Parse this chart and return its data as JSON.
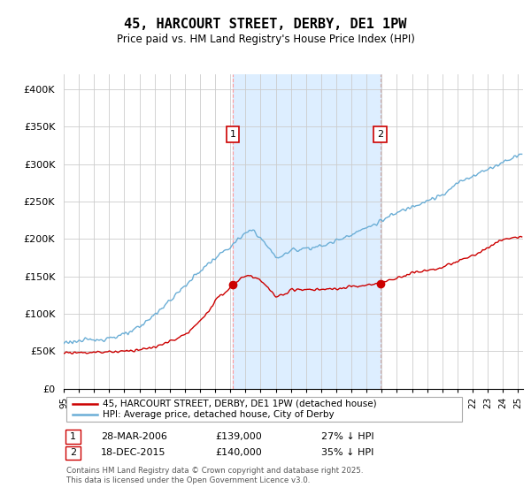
{
  "title": "45, HARCOURT STREET, DERBY, DE1 1PW",
  "subtitle": "Price paid vs. HM Land Registry's House Price Index (HPI)",
  "ylim": [
    0,
    420000
  ],
  "yticks": [
    0,
    50000,
    100000,
    150000,
    200000,
    250000,
    300000,
    350000,
    400000
  ],
  "ytick_labels": [
    "£0",
    "£50K",
    "£100K",
    "£150K",
    "£200K",
    "£250K",
    "£300K",
    "£350K",
    "£400K"
  ],
  "hpi_color": "#6baed6",
  "price_color": "#cc0000",
  "shade_color": "#ddeeff",
  "marker1_price": 139000,
  "marker1_label": "28-MAR-2006",
  "marker1_pct": "27% ↓ HPI",
  "marker2_price": 140000,
  "marker2_label": "18-DEC-2015",
  "marker2_pct": "35% ↓ HPI",
  "legend_line1": "45, HARCOURT STREET, DERBY, DE1 1PW (detached house)",
  "legend_line2": "HPI: Average price, detached house, City of Derby",
  "footer": "Contains HM Land Registry data © Crown copyright and database right 2025.\nThis data is licensed under the Open Government Licence v3.0.",
  "background_color": "#ffffff",
  "grid_color": "#cccccc",
  "sale1_year": 2006,
  "sale1_month": 3,
  "sale2_year": 2015,
  "sale2_month": 12,
  "hpi_knots_x": [
    1995,
    1997,
    1998,
    1999,
    2000,
    2001,
    2002,
    2003,
    2004,
    2005,
    2006,
    2007,
    2007.5,
    2008,
    2009,
    2009.5,
    2010,
    2011,
    2012,
    2013,
    2014,
    2015,
    2016,
    2017,
    2018,
    2019,
    2020,
    2021,
    2022,
    2023,
    2024,
    2025
  ],
  "hpi_knots_y": [
    62000,
    65000,
    68000,
    72000,
    82000,
    100000,
    118000,
    138000,
    158000,
    175000,
    190000,
    208000,
    212000,
    200000,
    175000,
    178000,
    185000,
    188000,
    190000,
    198000,
    207000,
    215000,
    225000,
    235000,
    244000,
    252000,
    258000,
    275000,
    285000,
    293000,
    303000,
    313000
  ],
  "price_knots_x": [
    1995,
    1997,
    1999,
    2001,
    2003,
    2004,
    2005,
    2006.2,
    2007,
    2008,
    2009,
    2009.5,
    2010,
    2011,
    2012,
    2013,
    2014,
    2015,
    2015.9,
    2016,
    2017,
    2018,
    2019,
    2020,
    2021,
    2022,
    2023,
    2024,
    2025
  ],
  "price_knots_y": [
    48000,
    48500,
    50000,
    55000,
    72000,
    90000,
    118000,
    139000,
    152000,
    145000,
    122000,
    125000,
    133000,
    132000,
    132000,
    133000,
    136000,
    138000,
    140000,
    142000,
    148000,
    155000,
    158000,
    162000,
    170000,
    178000,
    188000,
    200000,
    202000
  ]
}
